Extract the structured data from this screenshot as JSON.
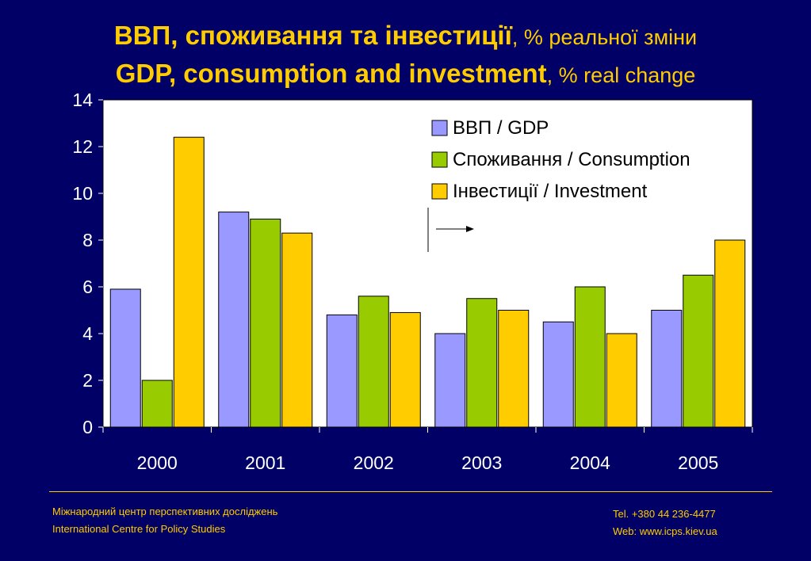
{
  "title": {
    "line1_bold": "ВВП, споживання та інвестиції",
    "line1_sub": ", % реальної зміни",
    "line2_bold": "GDP, consumption and investment",
    "line2_sub": ", % real change"
  },
  "chart_data": {
    "type": "bar",
    "categories": [
      "2000",
      "2001",
      "2002",
      "2003",
      "2004",
      "2005"
    ],
    "series": [
      {
        "name": "ВВП / GDP",
        "color": "#9999FF",
        "values": [
          5.9,
          9.2,
          4.8,
          4.0,
          4.5,
          5.0
        ]
      },
      {
        "name": "Споживання / Consumption",
        "color": "#99CC00",
        "values": [
          2.0,
          8.9,
          5.6,
          5.5,
          6.0,
          6.5
        ]
      },
      {
        "name": "Інвестиції / Investment",
        "color": "#FFCC00",
        "values": [
          12.4,
          8.3,
          4.9,
          5.0,
          4.0,
          8.0
        ]
      }
    ],
    "ylim": [
      0,
      14
    ],
    "yticks": [
      0,
      2,
      4,
      6,
      8,
      10,
      12,
      14
    ],
    "grid": false,
    "legend_position": "top-right",
    "plot_background": "#FFFFFF"
  },
  "footer": {
    "org_ua": "Міжнародний центр перспективних досліджень",
    "org_en": "International Centre for Policy Studies",
    "tel": "Tel. +380 44 236-4477",
    "web": "Web: www.icps.kiev.ua"
  }
}
